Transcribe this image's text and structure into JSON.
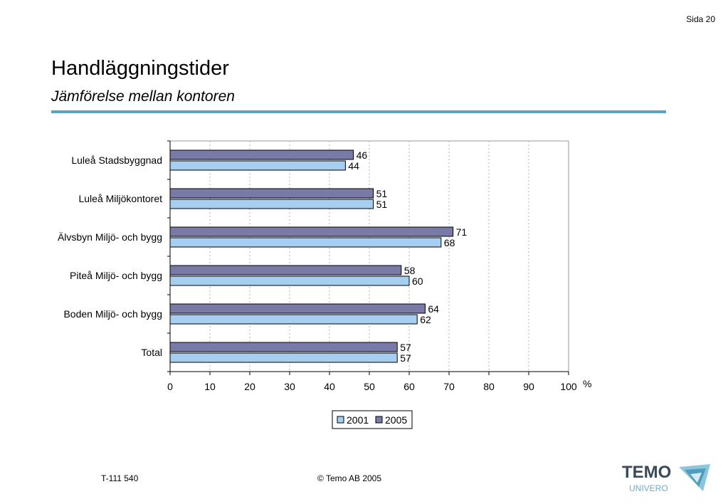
{
  "page": {
    "number": "Sida 20"
  },
  "header": {
    "title": "Handläggningstider",
    "subtitle": "Jämförelse mellan kontoren"
  },
  "footer": {
    "code": "T-111 540",
    "copyright": "©  Temo AB 2005"
  },
  "logo": {
    "word": "TEMO",
    "sub": "UNIVERO"
  },
  "colors": {
    "accent": "#5aa4c0",
    "series_2001": "#a6cef0",
    "series_2005": "#7a7aa6"
  },
  "chart_data": {
    "type": "bar",
    "orientation": "horizontal",
    "categories": [
      "Luleå Stadsbyggnad",
      "Luleå Miljökontoret",
      "Älvsbyn Miljö- och bygg",
      "Piteå Miljö- och bygg",
      "Boden Miljö- och bygg",
      "Total"
    ],
    "series": [
      {
        "name": "2001",
        "values": [
          44,
          51,
          68,
          60,
          62,
          57
        ]
      },
      {
        "name": "2005",
        "values": [
          46,
          51,
          71,
          58,
          64,
          57
        ]
      }
    ],
    "xlabel": "%",
    "xlim": [
      0,
      100
    ],
    "xticks": [
      0,
      10,
      20,
      30,
      40,
      50,
      60,
      70,
      80,
      90,
      100
    ],
    "grid": "vertical dashed",
    "legend": "bottom-center"
  }
}
